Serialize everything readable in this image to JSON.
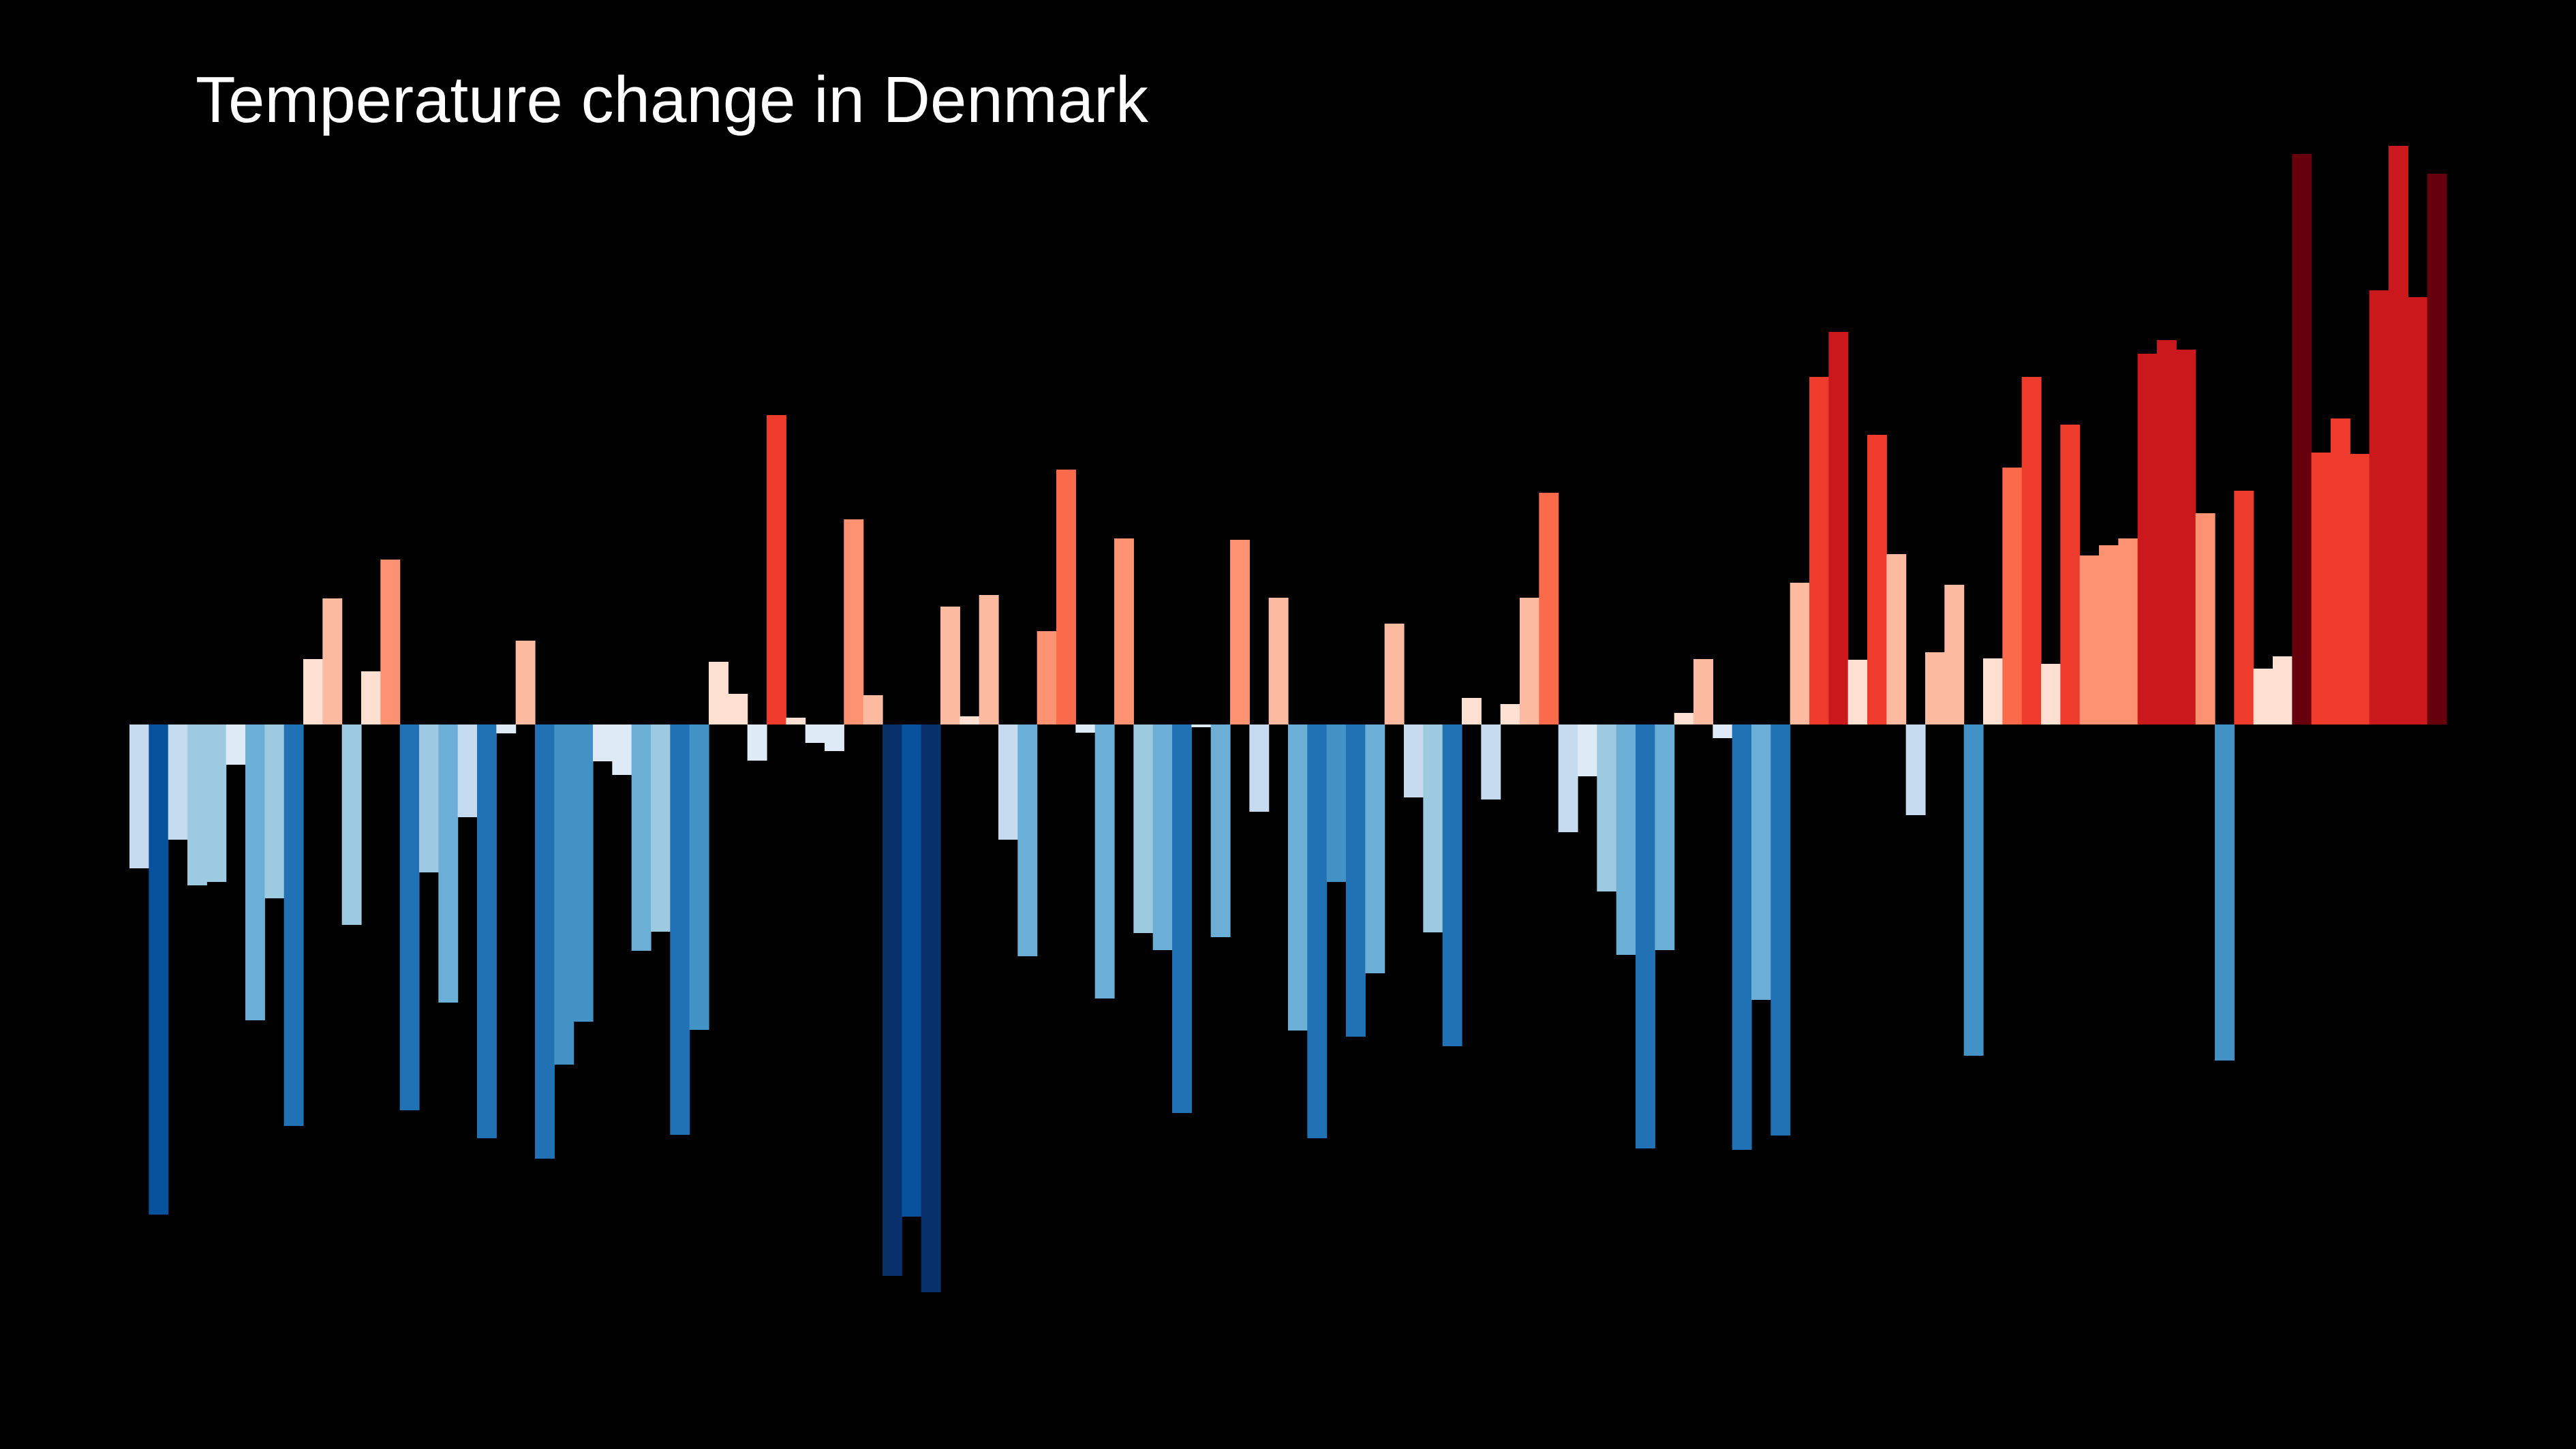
{
  "title": "Temperature change in Denmark",
  "chart_data": {
    "type": "bar",
    "title": "Temperature change in Denmark",
    "xlabel": "",
    "ylabel": "",
    "grid": false,
    "legend": "none",
    "background": "#000000",
    "bar_gap": false,
    "value_unit": "relative (zero-centered anomaly; no axis printed)",
    "ylim": [
      -0.83,
      0.84
    ],
    "palette": {
      "deep_red": "#67000d",
      "red": "#cb181d",
      "orange_red": "#ef3b2c",
      "salmon": "#fb6a4a",
      "light_salmon": "#fc9272",
      "peach": "#fcbba1",
      "pale_pink": "#fee0d2",
      "pale_blue": "#deebf7",
      "light_blue": "#c6dbef",
      "sky_blue": "#9ecae1",
      "mid_blue": "#6baed6",
      "blue": "#4292c6",
      "strong_blue": "#2171b5",
      "dark_blue": "#08519c",
      "navy": "#08306b"
    },
    "values": [
      -0.211,
      -0.719,
      -0.169,
      -0.236,
      -0.231,
      -0.059,
      -0.434,
      -0.255,
      -0.589,
      0.096,
      0.185,
      -0.294,
      0.078,
      0.242,
      -0.566,
      -0.217,
      -0.408,
      -0.136,
      -0.607,
      -0.013,
      0.123,
      -0.637,
      -0.499,
      -0.436,
      -0.054,
      -0.074,
      -0.332,
      -0.304,
      -0.602,
      -0.448,
      0.092,
      0.045,
      -0.053,
      0.454,
      0.01,
      -0.027,
      -0.039,
      0.301,
      0.043,
      -0.809,
      -0.722,
      -0.833,
      0.173,
      0.012,
      0.19,
      -0.169,
      -0.34,
      0.137,
      0.374,
      -0.012,
      -0.402,
      0.273,
      -0.306,
      -0.331,
      -0.57,
      -0.004,
      -0.312,
      0.271,
      -0.128,
      0.186,
      -0.449,
      -0.607,
      -0.231,
      -0.458,
      -0.365,
      0.148,
      -0.107,
      -0.305,
      -0.472,
      0.039,
      -0.11,
      0.03,
      0.186,
      0.34,
      -0.158,
      -0.076,
      -0.245,
      -0.338,
      -0.622,
      -0.331,
      0.017,
      0.096,
      -0.02,
      -0.624,
      -0.404,
      -0.603,
      0.208,
      0.51,
      0.576,
      0.095,
      0.425,
      0.25,
      -0.133,
      0.106,
      0.205,
      -0.486,
      0.097,
      0.377,
      0.51,
      0.089,
      0.44,
      0.248,
      0.263,
      0.273,
      0.544,
      0.564,
      0.55,
      0.31,
      -0.493,
      0.343,
      0.082,
      0.1,
      0.837,
      0.399,
      0.449,
      0.397,
      0.637,
      0.849,
      0.627,
      0.808
    ],
    "colors": [
      "#c6dbef",
      "#08519c",
      "#c6dbef",
      "#9ecae1",
      "#9ecae1",
      "#deebf7",
      "#6baed6",
      "#9ecae1",
      "#2171b5",
      "#fee0d2",
      "#fcbba1",
      "#9ecae1",
      "#fee0d2",
      "#fc9272",
      "#2171b5",
      "#9ecae1",
      "#6baed6",
      "#c6dbef",
      "#2171b5",
      "#deebf7",
      "#fcbba1",
      "#2171b5",
      "#4292c6",
      "#4292c6",
      "#deebf7",
      "#deebf7",
      "#6baed6",
      "#9ecae1",
      "#2171b5",
      "#4292c6",
      "#fee0d2",
      "#fee0d2",
      "#deebf7",
      "#ef3b2c",
      "#fee0d2",
      "#deebf7",
      "#deebf7",
      "#fc9272",
      "#fcbba1",
      "#08306b",
      "#08519c",
      "#08306b",
      "#fcbba1",
      "#fee0d2",
      "#fcbba1",
      "#c6dbef",
      "#6baed6",
      "#fc9272",
      "#fb6a4a",
      "#deebf7",
      "#6baed6",
      "#fc9272",
      "#9ecae1",
      "#6baed6",
      "#2171b5",
      "#deebf7",
      "#6baed6",
      "#fc9272",
      "#c6dbef",
      "#fcbba1",
      "#6baed6",
      "#2171b5",
      "#4292c6",
      "#2171b5",
      "#6baed6",
      "#fcbba1",
      "#c6dbef",
      "#9ecae1",
      "#2171b5",
      "#fee0d2",
      "#c6dbef",
      "#fee0d2",
      "#fcbba1",
      "#fb6a4a",
      "#c6dbef",
      "#deebf7",
      "#9ecae1",
      "#6baed6",
      "#2171b5",
      "#6baed6",
      "#fee0d2",
      "#fcbba1",
      "#deebf7",
      "#2171b5",
      "#6baed6",
      "#2171b5",
      "#fcbba1",
      "#ef3b2c",
      "#cb181d",
      "#fee0d2",
      "#ef3b2c",
      "#fcbba1",
      "#c6dbef",
      "#fcbba1",
      "#fcbba1",
      "#4292c6",
      "#fee0d2",
      "#fb6a4a",
      "#ef3b2c",
      "#fee0d2",
      "#ef3b2c",
      "#fc9272",
      "#fc9272",
      "#fc9272",
      "#cb181d",
      "#cb181d",
      "#cb181d",
      "#fc9272",
      "#4292c6",
      "#ef3b2c",
      "#fee0d2",
      "#fee0d2",
      "#67000d",
      "#ef3b2c",
      "#ef3b2c",
      "#ef3b2c",
      "#cb181d",
      "#cb181d",
      "#cb181d",
      "#67000d"
    ]
  }
}
